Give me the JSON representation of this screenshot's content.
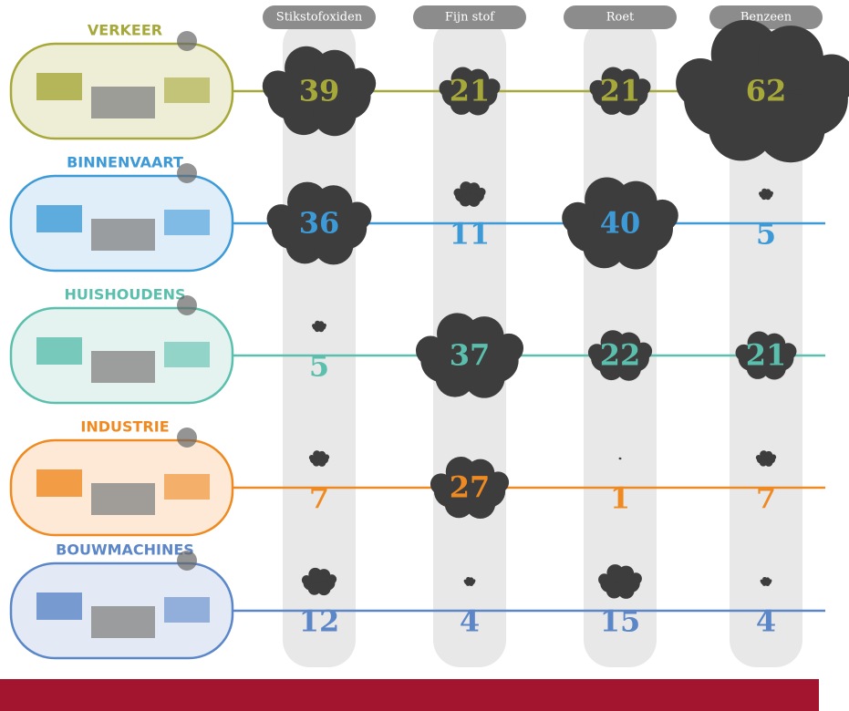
{
  "chart_data": {
    "type": "cloud-matrix",
    "columns": [
      "Stikstofoxiden",
      "Fijn stof",
      "Roet",
      "Benzeen"
    ],
    "series": [
      {
        "name": "VERKEER",
        "color": "#a6a83a",
        "values": [
          39,
          21,
          21,
          62
        ]
      },
      {
        "name": "BINNENVAART",
        "color": "#3d9ad6",
        "values": [
          36,
          11,
          40,
          5
        ]
      },
      {
        "name": "HUISHOUDENS",
        "color": "#5bbfae",
        "values": [
          5,
          37,
          22,
          21
        ]
      },
      {
        "name": "INDUSTRIE",
        "color": "#ef8a22",
        "values": [
          7,
          27,
          1,
          7
        ]
      },
      {
        "name": "BOUWMACHINES",
        "color": "#5b86c8",
        "values": [
          12,
          4,
          15,
          4
        ]
      }
    ]
  }
}
